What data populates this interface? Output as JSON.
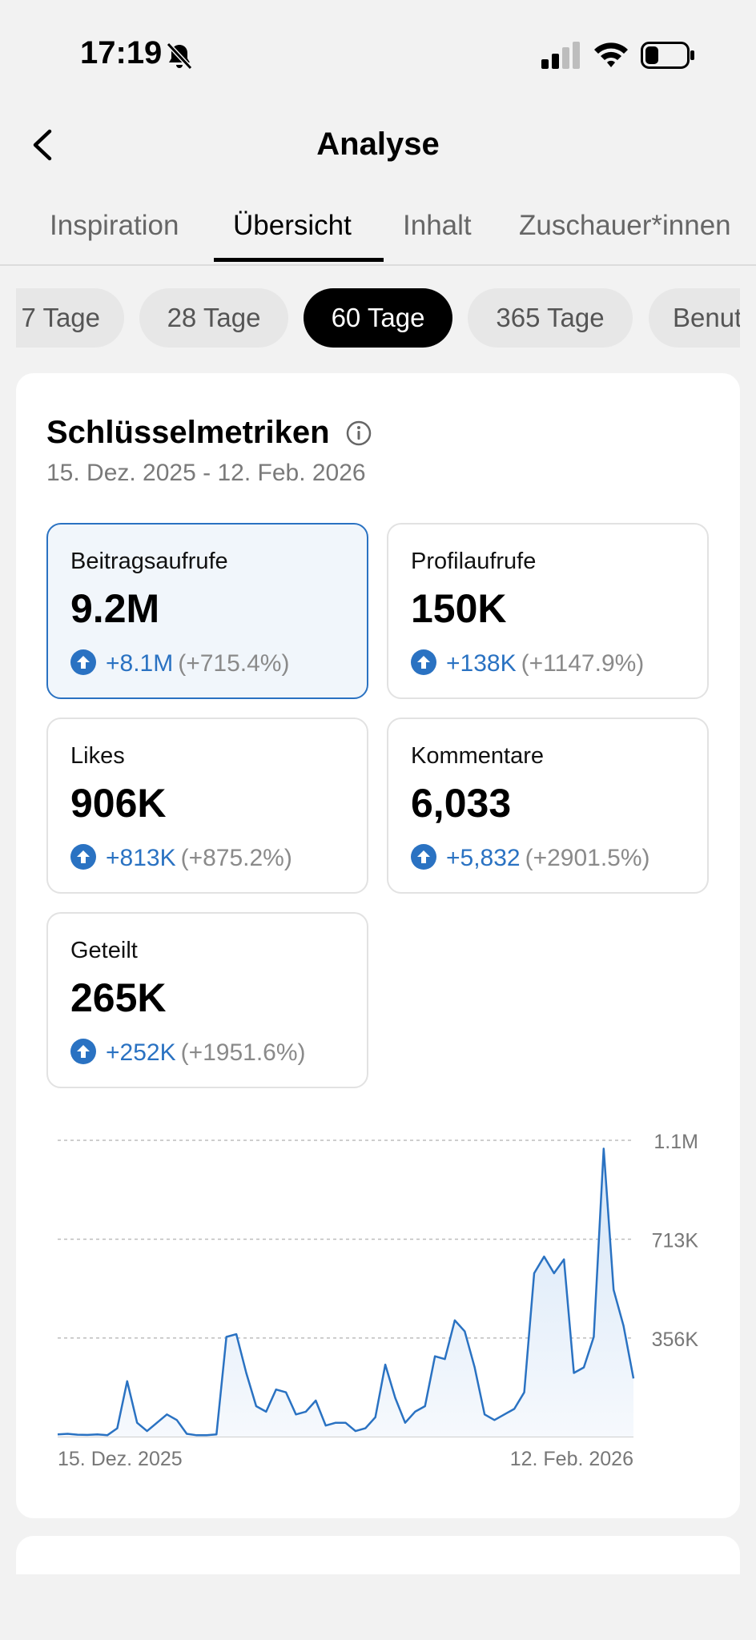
{
  "status": {
    "time": "17:19"
  },
  "header": {
    "title": "Analyse"
  },
  "tabs": [
    {
      "label": "Inspiration"
    },
    {
      "label": "Übersicht"
    },
    {
      "label": "Inhalt"
    },
    {
      "label": "Zuschauer*innen"
    }
  ],
  "active_tab": "Übersicht",
  "ranges": [
    {
      "label": "7 Tage"
    },
    {
      "label": "28 Tage"
    },
    {
      "label": "60 Tage"
    },
    {
      "label": "365 Tage"
    },
    {
      "label": "Benutzerdefiniert"
    }
  ],
  "active_range": "60 Tage",
  "metrics_card": {
    "title": "Schlüsselmetriken",
    "date_range": "15. Dez. 2025 - 12. Feb. 2026",
    "metrics": [
      {
        "label": "Beitragsaufrufe",
        "value": "9.2M",
        "delta": "+8.1M",
        "pct": "(+715.4%)"
      },
      {
        "label": "Profilaufrufe",
        "value": "150K",
        "delta": "+138K",
        "pct": "(+1147.9%)"
      },
      {
        "label": "Likes",
        "value": "906K",
        "delta": "+813K",
        "pct": "(+875.2%)"
      },
      {
        "label": "Kommentare",
        "value": "6,033",
        "delta": "+5,832",
        "pct": "(+2901.5%)"
      },
      {
        "label": "Geteilt",
        "value": "265K",
        "delta": "+252K",
        "pct": "(+1951.6%)"
      }
    ]
  },
  "colors": {
    "accent": "#2a72c2",
    "line": "#2a72c2",
    "area": "#eaf2fb"
  },
  "chart_data": {
    "type": "area",
    "series": [
      {
        "name": "Beitragsaufrufe",
        "values": [
          8000,
          10000,
          7000,
          6000,
          8000,
          5000,
          30000,
          200000,
          50000,
          20000,
          50000,
          80000,
          60000,
          10000,
          5000,
          5000,
          8000,
          360000,
          370000,
          230000,
          110000,
          90000,
          170000,
          160000,
          80000,
          90000,
          130000,
          40000,
          50000,
          50000,
          20000,
          30000,
          70000,
          260000,
          140000,
          50000,
          90000,
          110000,
          290000,
          280000,
          420000,
          380000,
          250000,
          80000,
          60000,
          80000,
          100000,
          160000,
          590000,
          650000,
          590000,
          640000,
          230000,
          250000,
          360000,
          1040000,
          530000,
          400000,
          210000
        ]
      }
    ],
    "x_tick_labels": [
      "15. Dez. 2025",
      "12. Feb. 2026"
    ],
    "y_tick_labels": [
      "1.1M",
      "713K",
      "356K"
    ],
    "y_ticks": [
      1070000,
      713000,
      356000
    ],
    "ylim": [
      0,
      1070000
    ],
    "grid": "horizontal dashed"
  }
}
